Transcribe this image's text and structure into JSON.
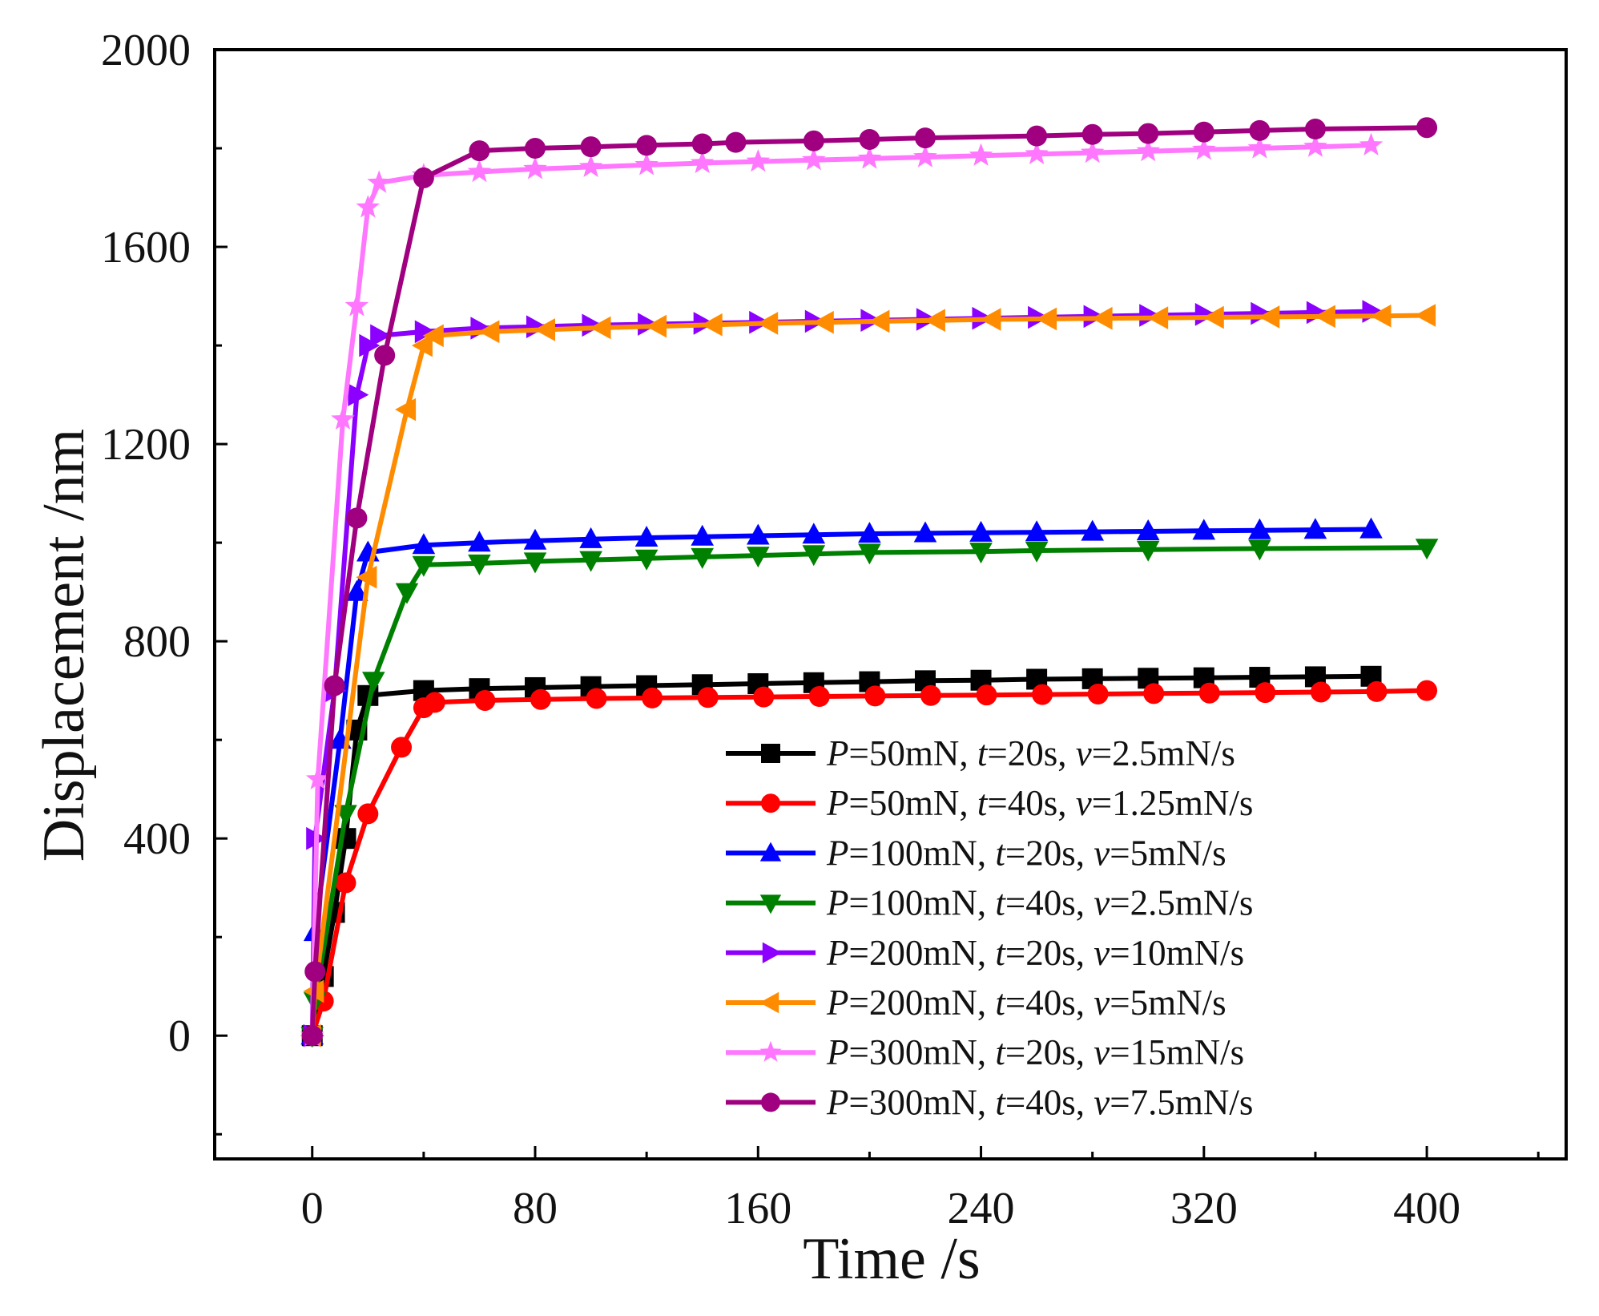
{
  "chart_data": {
    "type": "line",
    "title": "",
    "xlabel": "Time /s",
    "ylabel": "Displacement /nm",
    "xlim": [
      -35,
      450
    ],
    "ylim": [
      -250,
      2000
    ],
    "xticks": [
      0,
      80,
      160,
      240,
      320,
      400
    ],
    "xtick_labels": [
      "0",
      "80",
      "160",
      "240",
      "320",
      "400"
    ],
    "yticks": [
      0,
      400,
      800,
      1200,
      1600,
      2000
    ],
    "ytick_labels": [
      "0",
      "400",
      "800",
      "1200",
      "1600",
      "2000"
    ],
    "grid": false,
    "legend_position": "bottom-right",
    "series": [
      {
        "name": "P=50mN, t=20s, v=2.5mN/s",
        "legend_parts": [
          [
            "P",
            true
          ],
          [
            "=50mN, ",
            false
          ],
          [
            "t",
            true
          ],
          [
            "=20s, ",
            false
          ],
          [
            "v",
            true
          ],
          [
            "=2.5mN/s",
            false
          ]
        ],
        "color": "#000000",
        "marker": "square",
        "x": [
          0,
          4,
          8,
          12,
          16,
          20,
          40,
          60,
          80,
          100,
          120,
          140,
          160,
          180,
          200,
          220,
          240,
          260,
          280,
          300,
          320,
          340,
          360,
          380
        ],
        "y": [
          0,
          120,
          250,
          400,
          620,
          690,
          700,
          704,
          706,
          708,
          710,
          712,
          714,
          716,
          718,
          720,
          721,
          723,
          724,
          725,
          726,
          727,
          728,
          729
        ]
      },
      {
        "name": "P=50mN, t=40s, v=1.25mN/s",
        "legend_parts": [
          [
            "P",
            true
          ],
          [
            "=50mN, ",
            false
          ],
          [
            "t",
            true
          ],
          [
            "=40s, ",
            false
          ],
          [
            "v",
            true
          ],
          [
            "=1.25mN/s",
            false
          ]
        ],
        "color": "#ff0000",
        "marker": "circle",
        "x": [
          0,
          4,
          12,
          20,
          32,
          40,
          44,
          62,
          82,
          102,
          122,
          142,
          162,
          182,
          202,
          222,
          242,
          262,
          282,
          302,
          322,
          342,
          362,
          382,
          400
        ],
        "y": [
          0,
          70,
          310,
          450,
          585,
          665,
          676,
          680,
          682,
          684,
          685,
          686,
          687,
          688,
          689,
          690,
          691,
          692,
          693,
          694,
          695,
          696,
          697,
          698,
          700
        ]
      },
      {
        "name": "P=100mN, t=20s, v=5mN/s",
        "legend_parts": [
          [
            "P",
            true
          ],
          [
            "=100mN, ",
            false
          ],
          [
            "t",
            true
          ],
          [
            "=20s, ",
            false
          ],
          [
            "v",
            true
          ],
          [
            "=5mN/s",
            false
          ]
        ],
        "color": "#0000ff",
        "marker": "triangle-up",
        "x": [
          0,
          1,
          10,
          16,
          20,
          40,
          60,
          80,
          100,
          120,
          140,
          160,
          180,
          200,
          220,
          240,
          260,
          280,
          300,
          320,
          340,
          360,
          380
        ],
        "y": [
          0,
          210,
          600,
          900,
          980,
          995,
          1000,
          1004,
          1007,
          1010,
          1012,
          1014,
          1016,
          1018,
          1019,
          1020,
          1021,
          1022,
          1023,
          1024,
          1025,
          1026,
          1027
        ]
      },
      {
        "name": "P=100mN, t=40s, v=2.5mN/s",
        "legend_parts": [
          [
            "P",
            true
          ],
          [
            "=100mN, ",
            false
          ],
          [
            "t",
            true
          ],
          [
            "=40s, ",
            false
          ],
          [
            "v",
            true
          ],
          [
            "=2.5mN/s",
            false
          ]
        ],
        "color": "#008000",
        "marker": "triangle-down",
        "x": [
          0,
          1,
          12,
          22,
          34,
          40,
          60,
          80,
          100,
          120,
          140,
          160,
          180,
          200,
          240,
          260,
          300,
          340,
          400
        ],
        "y": [
          0,
          70,
          450,
          720,
          900,
          955,
          958,
          962,
          965,
          968,
          971,
          974,
          977,
          980,
          982,
          984,
          986,
          988,
          990
        ]
      },
      {
        "name": "P=200mN, t=20s, v=10mN/s",
        "legend_parts": [
          [
            "P",
            true
          ],
          [
            "=200mN, ",
            false
          ],
          [
            "t",
            true
          ],
          [
            "=20s, ",
            false
          ],
          [
            "v",
            true
          ],
          [
            "=10mN/s",
            false
          ]
        ],
        "color": "#8b00ff",
        "marker": "triangle-right",
        "x": [
          0,
          1,
          8,
          16,
          20,
          24,
          40,
          60,
          80,
          100,
          120,
          140,
          160,
          180,
          200,
          220,
          240,
          260,
          280,
          300,
          320,
          340,
          360,
          380
        ],
        "y": [
          0,
          400,
          700,
          1300,
          1400,
          1420,
          1428,
          1435,
          1438,
          1441,
          1443,
          1445,
          1447,
          1449,
          1451,
          1453,
          1455,
          1457,
          1459,
          1461,
          1463,
          1465,
          1467,
          1469
        ]
      },
      {
        "name": "P=200mN, t=40s, v=5mN/s",
        "legend_parts": [
          [
            "P",
            true
          ],
          [
            "=200mN, ",
            false
          ],
          [
            "t",
            true
          ],
          [
            "=40s, ",
            false
          ],
          [
            "v",
            true
          ],
          [
            "=5mN/s",
            false
          ]
        ],
        "color": "#ff8c00",
        "marker": "triangle-left",
        "x": [
          0,
          1,
          20,
          34,
          40,
          44,
          64,
          84,
          104,
          124,
          144,
          164,
          184,
          204,
          224,
          244,
          264,
          284,
          304,
          324,
          344,
          364,
          384,
          400
        ],
        "y": [
          0,
          90,
          930,
          1270,
          1400,
          1420,
          1428,
          1432,
          1436,
          1439,
          1442,
          1445,
          1447,
          1449,
          1451,
          1453,
          1454,
          1455,
          1456,
          1457,
          1458,
          1459,
          1460,
          1461
        ]
      },
      {
        "name": "P=300mN, t=20s, v=15mN/s",
        "legend_parts": [
          [
            "P",
            true
          ],
          [
            "=300mN, ",
            false
          ],
          [
            "t",
            true
          ],
          [
            "=20s, ",
            false
          ],
          [
            "v",
            true
          ],
          [
            "=15mN/s",
            false
          ]
        ],
        "color": "#ff77ff",
        "marker": "star",
        "x": [
          0,
          2,
          11,
          16,
          20,
          24,
          40,
          60,
          80,
          100,
          120,
          140,
          160,
          180,
          200,
          220,
          240,
          260,
          280,
          300,
          320,
          340,
          360,
          380
        ],
        "y": [
          0,
          520,
          1250,
          1480,
          1680,
          1730,
          1745,
          1752,
          1758,
          1762,
          1766,
          1770,
          1773,
          1776,
          1779,
          1782,
          1785,
          1788,
          1791,
          1794,
          1797,
          1800,
          1803,
          1806
        ]
      },
      {
        "name": "P=300mN, t=40s, v=7.5mN/s",
        "legend_parts": [
          [
            "P",
            true
          ],
          [
            "=300mN, ",
            false
          ],
          [
            "t",
            true
          ],
          [
            "=40s, ",
            false
          ],
          [
            "v",
            true
          ],
          [
            "=7.5mN/s",
            false
          ]
        ],
        "color": "#a0007f",
        "marker": "circle",
        "x": [
          0,
          1,
          8,
          16,
          26,
          40,
          60,
          80,
          100,
          120,
          140,
          152,
          180,
          200,
          220,
          260,
          280,
          300,
          320,
          340,
          360,
          400
        ],
        "y": [
          0,
          130,
          710,
          1050,
          1380,
          1740,
          1795,
          1800,
          1803,
          1806,
          1809,
          1812,
          1815,
          1818,
          1821,
          1825,
          1828,
          1830,
          1833,
          1836,
          1839,
          1842
        ]
      }
    ]
  }
}
